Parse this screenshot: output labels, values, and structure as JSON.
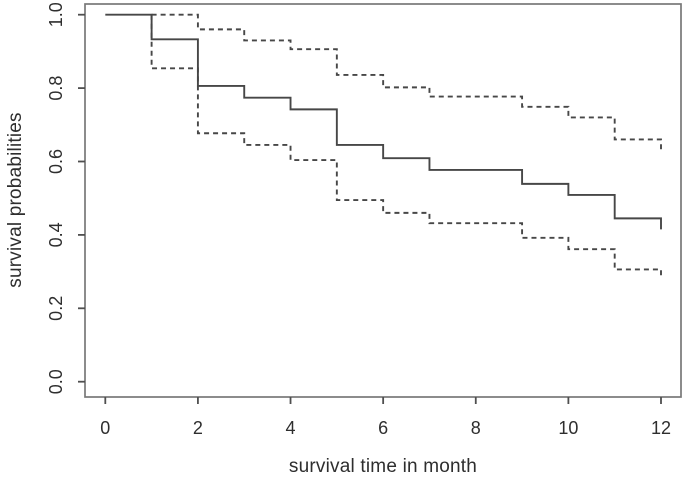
{
  "figure": {
    "kind": "kaplan-meier-survival-plot",
    "background": "#ffffff"
  },
  "chart_data": {
    "type": "line",
    "subtype": "step",
    "title": "",
    "xlabel": "survival time in month",
    "ylabel": "survival probabilities",
    "xlim": [
      0,
      12
    ],
    "ylim": [
      0.0,
      1.0
    ],
    "grid": false,
    "legend": "none",
    "x_ticks": [
      0,
      2,
      4,
      6,
      8,
      10,
      12
    ],
    "x_tick_labels": [
      "0",
      "2",
      "4",
      "6",
      "8",
      "10",
      "12"
    ],
    "y_ticks": [
      0.0,
      0.2,
      0.4,
      0.6,
      0.8,
      1.0
    ],
    "y_tick_labels": [
      "0.0",
      "0.2",
      "0.4",
      "0.6",
      "0.8",
      "1.0"
    ],
    "series": [
      {
        "name": "km-estimate",
        "label": "survival estimate",
        "style": "solid",
        "steps": [
          [
            0,
            1.0
          ],
          [
            1,
            0.933
          ],
          [
            2,
            0.806
          ],
          [
            3,
            0.774
          ],
          [
            4,
            0.742
          ],
          [
            5,
            0.645
          ],
          [
            6,
            0.609
          ],
          [
            7,
            0.577
          ],
          [
            9,
            0.539
          ],
          [
            10,
            0.509
          ],
          [
            11,
            0.445
          ],
          [
            12,
            0.415
          ]
        ]
      },
      {
        "name": "upper-95-ci",
        "label": "upper confidence band",
        "style": "dashed",
        "steps": [
          [
            1,
            1.0
          ],
          [
            2,
            0.96
          ],
          [
            3,
            0.93
          ],
          [
            4,
            0.906
          ],
          [
            5,
            0.836
          ],
          [
            6,
            0.802
          ],
          [
            7,
            0.777
          ],
          [
            9,
            0.749
          ],
          [
            10,
            0.72
          ],
          [
            11,
            0.66
          ],
          [
            12,
            0.631
          ]
        ]
      },
      {
        "name": "lower-95-ci",
        "label": "lower confidence band",
        "style": "dashed",
        "enter_from": 1.0,
        "steps": [
          [
            1,
            0.854
          ],
          [
            2,
            0.677
          ],
          [
            3,
            0.645
          ],
          [
            4,
            0.604
          ],
          [
            5,
            0.495
          ],
          [
            6,
            0.46
          ],
          [
            7,
            0.432
          ],
          [
            9,
            0.392
          ],
          [
            10,
            0.361
          ],
          [
            11,
            0.306
          ],
          [
            12,
            0.284
          ]
        ]
      }
    ],
    "colors": {
      "curve": "#474747",
      "box": "#787878",
      "tick": "#4f4f4f",
      "text": "#2e2e2e"
    }
  }
}
